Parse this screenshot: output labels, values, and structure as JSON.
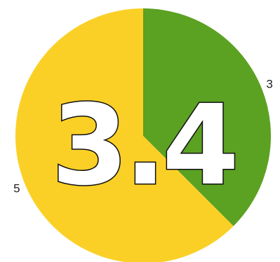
{
  "chart_data": {
    "type": "pie",
    "slices": [
      {
        "label": "3",
        "value": 3,
        "color": "#5ba122"
      },
      {
        "label": "5",
        "value": 5,
        "color": "#fbd026"
      }
    ],
    "center_text": "3.4"
  }
}
